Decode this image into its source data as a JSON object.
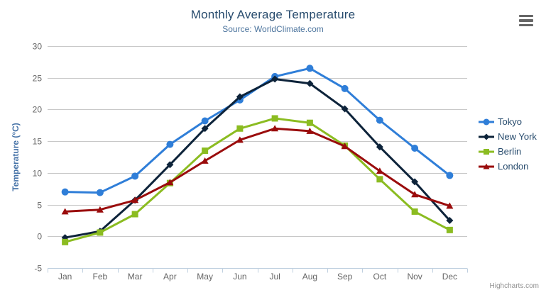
{
  "chart": {
    "title": "Monthly Average Temperature",
    "subtitle": "Source: WorldClimate.com",
    "credits": "Highcharts.com",
    "export_menu_icon": "hamburger-icon"
  },
  "colors": {
    "title": "#274b6d",
    "subtitle": "#4d759e",
    "axis_label": "#666666",
    "axis_title": "#4572a7",
    "gridline": "#c8c8c8",
    "axis_line": "#c0d0e0",
    "legend_text": "#274b6d",
    "credits": "#909090",
    "menu_icon": "#666666"
  },
  "chart_data": {
    "type": "line",
    "title": "Monthly Average Temperature",
    "subtitle": "Source: WorldClimate.com",
    "xlabel": "",
    "ylabel": "Temperature (°C)",
    "categories": [
      "Jan",
      "Feb",
      "Mar",
      "Apr",
      "May",
      "Jun",
      "Jul",
      "Aug",
      "Sep",
      "Oct",
      "Nov",
      "Dec"
    ],
    "ylim": [
      -5,
      30
    ],
    "ytick_interval": 5,
    "ytick_labels": [
      "-5",
      "0",
      "5",
      "10",
      "15",
      "20",
      "25",
      "30"
    ],
    "grid": true,
    "legend_position": "right",
    "series": [
      {
        "name": "Tokyo",
        "color": "#2f7ed8",
        "marker": "circle",
        "values": [
          7.0,
          6.9,
          9.5,
          14.5,
          18.2,
          21.5,
          25.2,
          26.5,
          23.3,
          18.3,
          13.9,
          9.6
        ]
      },
      {
        "name": "New York",
        "color": "#0d233a",
        "marker": "diamond",
        "values": [
          -0.2,
          0.8,
          5.7,
          11.3,
          17.0,
          22.0,
          24.8,
          24.1,
          20.1,
          14.1,
          8.6,
          2.5
        ]
      },
      {
        "name": "Berlin",
        "color": "#8bbc21",
        "marker": "square",
        "values": [
          -0.9,
          0.6,
          3.5,
          8.4,
          13.5,
          17.0,
          18.6,
          17.9,
          14.3,
          9.0,
          3.9,
          1.0
        ]
      },
      {
        "name": "London",
        "color": "#9a0c0c",
        "marker": "triangle",
        "values": [
          3.9,
          4.2,
          5.7,
          8.5,
          11.9,
          15.2,
          17.0,
          16.6,
          14.2,
          10.3,
          6.6,
          4.8
        ]
      }
    ]
  }
}
